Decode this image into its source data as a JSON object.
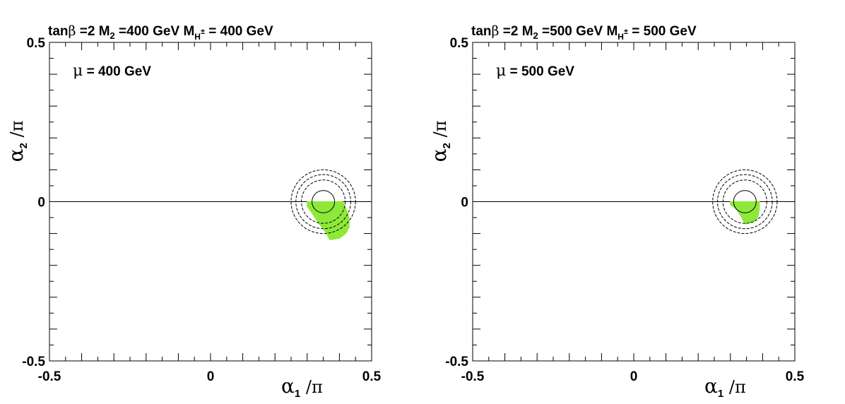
{
  "chart_data": [
    {
      "type": "contour",
      "title_parts": {
        "tanb_pre": "tan",
        "tanb_sym": "β",
        "tanb_post": " =2",
        "m2_pre": "M",
        "m2_sub": "2",
        "m2_post": " =400 GeV",
        "mh_pre": "M",
        "mh_sub": "H",
        "mh_sup": "±",
        "mh_post": " = 400 GeV"
      },
      "annotation": {
        "sym": "μ",
        "text": " =  400 GeV"
      },
      "xlabel": {
        "sym": "α",
        "sub": "1",
        "post": " /π"
      },
      "ylabel": {
        "sym": "α",
        "sub": "2",
        "post": " /π"
      },
      "xlim": [
        -0.5,
        0.5
      ],
      "ylim": [
        -0.5,
        0.5
      ],
      "xtick_labels": [
        {
          "value": -0.5,
          "label": "-0.5"
        },
        {
          "value": 0,
          "label": "0"
        },
        {
          "value": 0.5,
          "label": "0.5"
        }
      ],
      "ytick_labels": [
        {
          "value": 0.5,
          "label": "0.5"
        },
        {
          "value": 0,
          "label": "0"
        },
        {
          "value": -0.5,
          "label": "-0.5"
        }
      ],
      "zero_line": true,
      "contours": {
        "center": [
          0.35,
          0.0
        ],
        "radii": [
          0.035,
          0.068,
          0.085,
          0.1
        ]
      },
      "allowed_region": {
        "color": "#8de83a",
        "polygon": [
          [
            0.3,
            0.0
          ],
          [
            0.41,
            0.0
          ],
          [
            0.42,
            -0.02
          ],
          [
            0.43,
            -0.05
          ],
          [
            0.43,
            -0.08
          ],
          [
            0.42,
            -0.1
          ],
          [
            0.4,
            -0.115
          ],
          [
            0.37,
            -0.12
          ],
          [
            0.36,
            -0.1
          ],
          [
            0.345,
            -0.08
          ],
          [
            0.33,
            -0.06
          ],
          [
            0.315,
            -0.035
          ],
          [
            0.3,
            -0.015
          ]
        ]
      }
    },
    {
      "type": "contour",
      "title_parts": {
        "tanb_pre": "tan",
        "tanb_sym": "β",
        "tanb_post": " =2",
        "m2_pre": "M",
        "m2_sub": "2",
        "m2_post": " =500 GeV",
        "mh_pre": "M",
        "mh_sub": "H",
        "mh_sup": "±",
        "mh_post": " = 500 GeV"
      },
      "annotation": {
        "sym": "μ",
        "text": " =  500 GeV"
      },
      "xlabel": {
        "sym": "α",
        "sub": "1",
        "post": " /π"
      },
      "ylabel": {
        "sym": "α",
        "sub": "2",
        "post": " /π"
      },
      "xlim": [
        -0.5,
        0.5
      ],
      "ylim": [
        -0.5,
        0.5
      ],
      "xtick_labels": [
        {
          "value": -0.5,
          "label": "-0.5"
        },
        {
          "value": 0,
          "label": "0"
        },
        {
          "value": 0.5,
          "label": "0.5"
        }
      ],
      "ytick_labels": [
        {
          "value": 0.5,
          "label": "0.5"
        },
        {
          "value": 0,
          "label": "0"
        },
        {
          "value": -0.5,
          "label": "-0.5"
        }
      ],
      "zero_line": true,
      "contours": {
        "center": [
          0.345,
          0.0
        ],
        "radii": [
          0.035,
          0.068,
          0.085,
          0.1
        ]
      },
      "allowed_region": {
        "color": "#8de83a",
        "polygon": [
          [
            0.3,
            0.0
          ],
          [
            0.39,
            0.0
          ],
          [
            0.39,
            -0.025
          ],
          [
            0.385,
            -0.05
          ],
          [
            0.37,
            -0.065
          ],
          [
            0.345,
            -0.07
          ],
          [
            0.335,
            -0.05
          ],
          [
            0.32,
            -0.025
          ],
          [
            0.3,
            -0.01
          ]
        ]
      }
    }
  ]
}
